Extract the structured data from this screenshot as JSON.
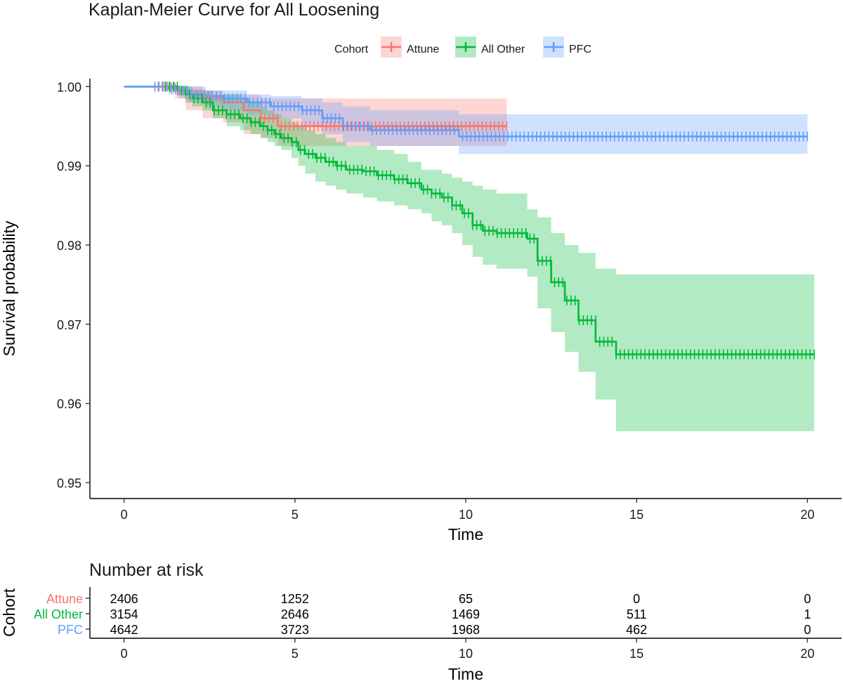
{
  "title": "Kaplan-Meier Curve for All Loosening",
  "legend": {
    "title": "Cohort",
    "position": "top",
    "items": [
      {
        "name": "Attune",
        "color": "#F8766D",
        "fill": "#F8766D"
      },
      {
        "name": "All Other",
        "color": "#00BA38",
        "fill": "#00BA38"
      },
      {
        "name": "PFC",
        "color": "#619CFF",
        "fill": "#619CFF"
      }
    ]
  },
  "chart_data": [
    {
      "type": "line",
      "subtype": "kaplan-meier step survival curves with confidence bands and censor marks",
      "title": "Kaplan-Meier Curve for All Loosening",
      "xlabel": "Time",
      "ylabel": "Survival probability",
      "xlim": [
        -1,
        21
      ],
      "ylim": [
        0.948,
        1.001
      ],
      "xticks": [
        0,
        5,
        10,
        15,
        20
      ],
      "yticks": [
        0.95,
        0.96,
        0.97,
        0.98,
        0.99,
        1.0
      ],
      "ytick_labels": [
        "0.95",
        "0.96",
        "0.97",
        "0.98",
        "0.99",
        "1.00"
      ],
      "grid": false,
      "series": [
        {
          "name": "Attune",
          "color": "#F8766D",
          "x": [
            0,
            1.5,
            1.8,
            2.3,
            2.9,
            3.5,
            4.0,
            4.5,
            11.2
          ],
          "y": [
            1.0,
            0.9995,
            0.999,
            0.9985,
            0.998,
            0.997,
            0.996,
            0.995,
            0.995
          ],
          "lower": [
            1.0,
            0.9985,
            0.997,
            0.996,
            0.9955,
            0.994,
            0.9935,
            0.9925,
            0.9925
          ],
          "upper": [
            1.0,
            1.0,
            1.0,
            0.9995,
            0.999,
            0.999,
            0.9985,
            0.9985,
            0.9985
          ],
          "censor_ranges": [
            [
              1.0,
              2.5
            ],
            [
              4.0,
              11.2
            ]
          ]
        },
        {
          "name": "All Other",
          "color": "#00BA38",
          "x": [
            0,
            1.6,
            1.8,
            2.0,
            2.3,
            2.6,
            3.0,
            3.4,
            3.7,
            4.0,
            4.2,
            4.4,
            4.6,
            4.9,
            5.1,
            5.3,
            5.6,
            5.9,
            6.2,
            6.5,
            7.0,
            7.4,
            7.9,
            8.3,
            8.7,
            9.0,
            9.3,
            9.6,
            9.9,
            10.2,
            10.5,
            10.9,
            11.8,
            12.1,
            12.5,
            12.9,
            13.3,
            13.8,
            14.4,
            20.2
          ],
          "y": [
            1.0,
            0.9995,
            0.999,
            0.9985,
            0.998,
            0.997,
            0.9965,
            0.996,
            0.9955,
            0.995,
            0.9945,
            0.994,
            0.9935,
            0.993,
            0.992,
            0.9915,
            0.991,
            0.9905,
            0.99,
            0.9895,
            0.9893,
            0.9888,
            0.9883,
            0.9878,
            0.987,
            0.9865,
            0.986,
            0.985,
            0.984,
            0.9825,
            0.9818,
            0.9815,
            0.9808,
            0.978,
            0.9753,
            0.973,
            0.9705,
            0.9678,
            0.9662,
            0.9662
          ],
          "lower": [
            1.0,
            0.999,
            0.998,
            0.9975,
            0.997,
            0.996,
            0.995,
            0.9945,
            0.994,
            0.9935,
            0.993,
            0.9925,
            0.992,
            0.991,
            0.99,
            0.989,
            0.988,
            0.9875,
            0.987,
            0.9865,
            0.986,
            0.9855,
            0.985,
            0.9845,
            0.984,
            0.983,
            0.9825,
            0.9815,
            0.98,
            0.9785,
            0.9775,
            0.977,
            0.976,
            0.972,
            0.969,
            0.9665,
            0.964,
            0.9605,
            0.9565,
            0.9565
          ],
          "upper": [
            1.0,
            1.0,
            1.0,
            0.9995,
            0.9995,
            0.999,
            0.999,
            0.9985,
            0.998,
            0.9975,
            0.997,
            0.9965,
            0.996,
            0.9955,
            0.995,
            0.9945,
            0.994,
            0.9935,
            0.993,
            0.9925,
            0.9925,
            0.992,
            0.9915,
            0.9905,
            0.9895,
            0.9895,
            0.989,
            0.9885,
            0.988,
            0.9875,
            0.987,
            0.9865,
            0.9845,
            0.9835,
            0.9815,
            0.98,
            0.979,
            0.977,
            0.9763,
            0.9763
          ],
          "censor_ranges": [
            [
              1.2,
              14.4
            ],
            [
              14.4,
              20.2
            ]
          ]
        },
        {
          "name": "PFC",
          "color": "#619CFF",
          "x": [
            0,
            1.3,
            1.6,
            1.9,
            2.4,
            2.9,
            3.6,
            4.3,
            5.2,
            5.8,
            6.4,
            7.2,
            9.8,
            20.0
          ],
          "y": [
            1.0,
            0.9998,
            0.9995,
            0.999,
            0.9988,
            0.9985,
            0.998,
            0.9975,
            0.997,
            0.996,
            0.995,
            0.9945,
            0.9937,
            0.9937
          ],
          "lower": [
            1.0,
            0.999,
            0.9985,
            0.998,
            0.9975,
            0.997,
            0.9965,
            0.996,
            0.995,
            0.994,
            0.993,
            0.9925,
            0.9915,
            0.9915
          ],
          "upper": [
            1.0,
            1.0,
            1.0,
            1.0,
            0.9995,
            0.9995,
            0.999,
            0.9988,
            0.9985,
            0.998,
            0.9975,
            0.997,
            0.9965,
            0.9965
          ],
          "censor_ranges": [
            [
              0.9,
              20.0
            ]
          ]
        }
      ]
    },
    {
      "type": "table",
      "title": "Number at risk",
      "xlabel": "Time",
      "ylabel": "Cohort",
      "xticks": [
        0,
        5,
        10,
        15,
        20
      ],
      "rows": [
        {
          "name": "Attune",
          "color": "#F8766D",
          "values": [
            "2406",
            "1252",
            "65",
            "0",
            "0"
          ]
        },
        {
          "name": "All Other",
          "color": "#00BA38",
          "values": [
            "3154",
            "2646",
            "1469",
            "511",
            "1"
          ]
        },
        {
          "name": "PFC",
          "color": "#619CFF",
          "values": [
            "4642",
            "3723",
            "1968",
            "462",
            "0"
          ]
        }
      ]
    }
  ]
}
